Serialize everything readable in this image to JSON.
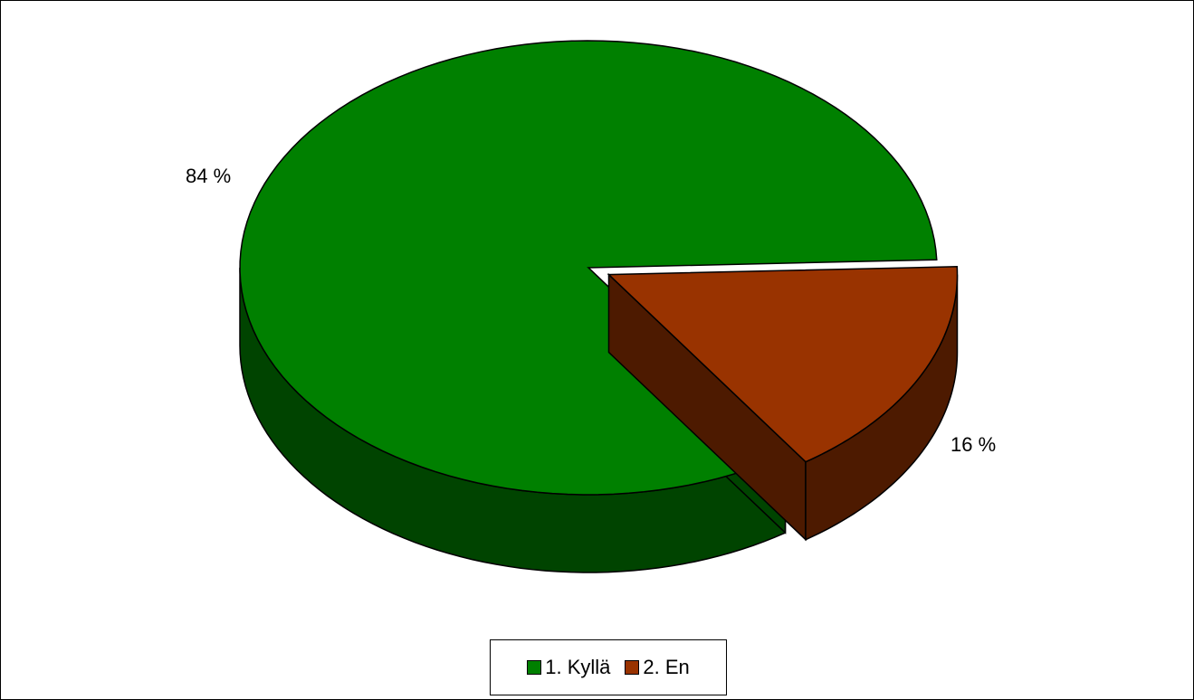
{
  "chart_data": {
    "type": "pie",
    "title": "",
    "style": "3d-exploded",
    "slices": [
      {
        "label": "1. Kyllä",
        "value": 84,
        "data_label": "84 %",
        "color": "#008000",
        "side_color": "#004400"
      },
      {
        "label": "2. En",
        "value": 16,
        "data_label": "16 %",
        "color": "#993300",
        "side_color": "#4d1a00"
      }
    ],
    "legend": {
      "position": "bottom"
    }
  }
}
